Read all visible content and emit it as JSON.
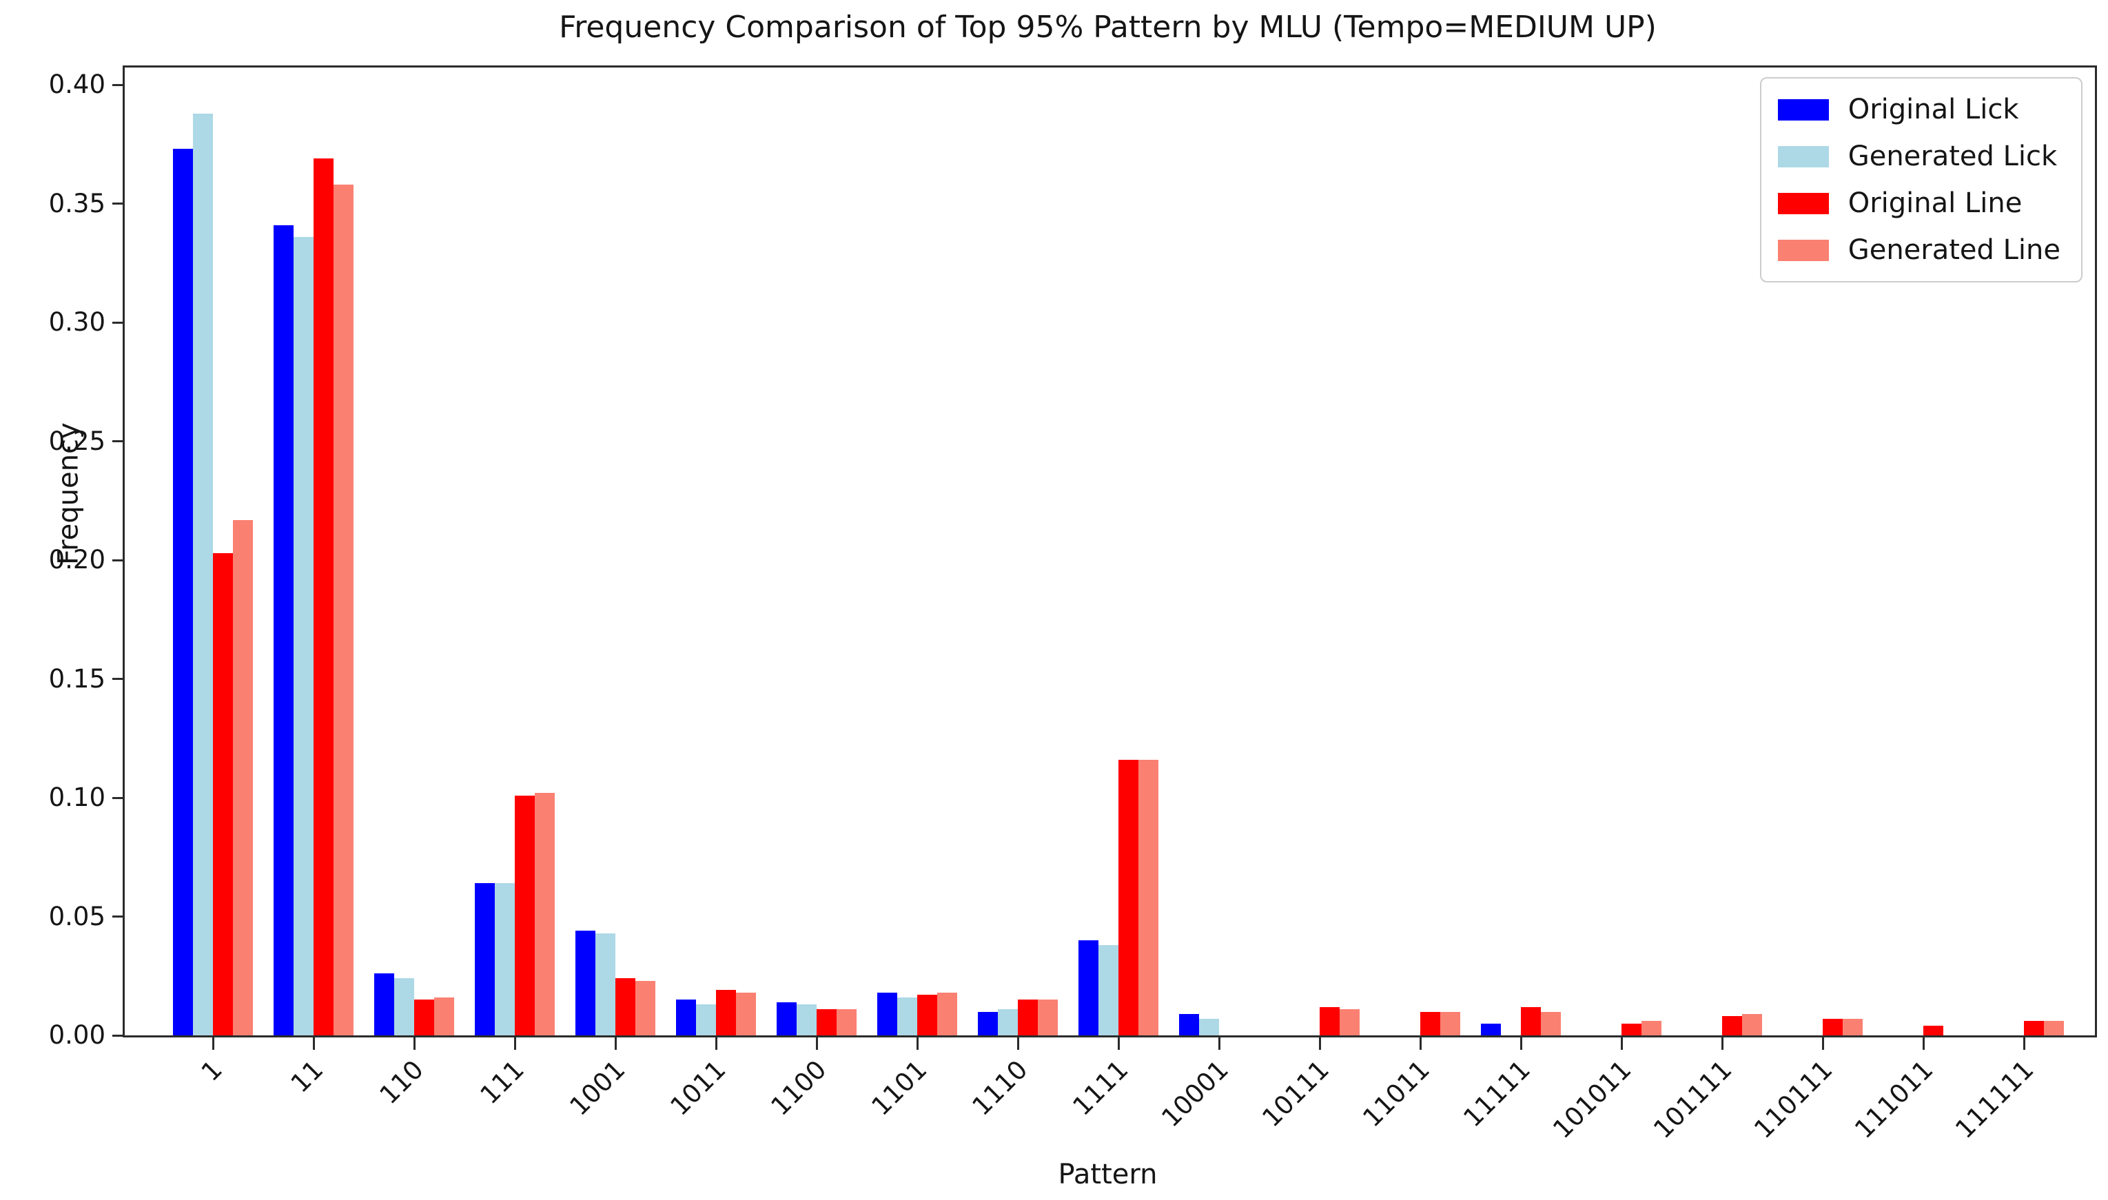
{
  "chart_data": {
    "type": "bar",
    "title": "Frequency Comparison of Top 95% Pattern by MLU (Tempo=MEDIUM UP)",
    "xlabel": "Pattern",
    "ylabel": "Frequency",
    "categories": [
      "1",
      "11",
      "110",
      "111",
      "1001",
      "1011",
      "1100",
      "1101",
      "1110",
      "1111",
      "10001",
      "10111",
      "11011",
      "11111",
      "101011",
      "101111",
      "110111",
      "111011",
      "111111"
    ],
    "series": [
      {
        "name": "Original Lick",
        "color": "#0000FF",
        "values": [
          0.373,
          0.341,
          0.026,
          0.064,
          0.044,
          0.015,
          0.014,
          0.018,
          0.01,
          0.04,
          0.009,
          0,
          0,
          0.005,
          0,
          0,
          0,
          0,
          0
        ]
      },
      {
        "name": "Generated Lick",
        "color": "#ADD8E6",
        "values": [
          0.388,
          0.336,
          0.024,
          0.064,
          0.043,
          0.013,
          0.013,
          0.016,
          0.011,
          0.038,
          0.007,
          0,
          0,
          0,
          0,
          0,
          0,
          0,
          0
        ]
      },
      {
        "name": "Original Line",
        "color": "#FF0000",
        "values": [
          0.203,
          0.369,
          0.015,
          0.101,
          0.024,
          0.019,
          0.011,
          0.017,
          0.015,
          0.116,
          0,
          0.012,
          0.01,
          0.012,
          0.005,
          0.008,
          0.007,
          0.004,
          0.006
        ]
      },
      {
        "name": "Generated Line",
        "color": "#FA8072",
        "values": [
          0.217,
          0.358,
          0.016,
          0.102,
          0.023,
          0.018,
          0.011,
          0.018,
          0.015,
          0.116,
          0,
          0.011,
          0.01,
          0.01,
          0.006,
          0.009,
          0.007,
          0,
          0.006
        ]
      }
    ],
    "ylim": [
      0,
      0.40733
    ],
    "yticks": [
      "0.00",
      "0.05",
      "0.10",
      "0.15",
      "0.20",
      "0.25",
      "0.30",
      "0.35",
      "0.40"
    ],
    "x_tick_rotation": 45,
    "grid": false,
    "legend_position": "upper right"
  }
}
